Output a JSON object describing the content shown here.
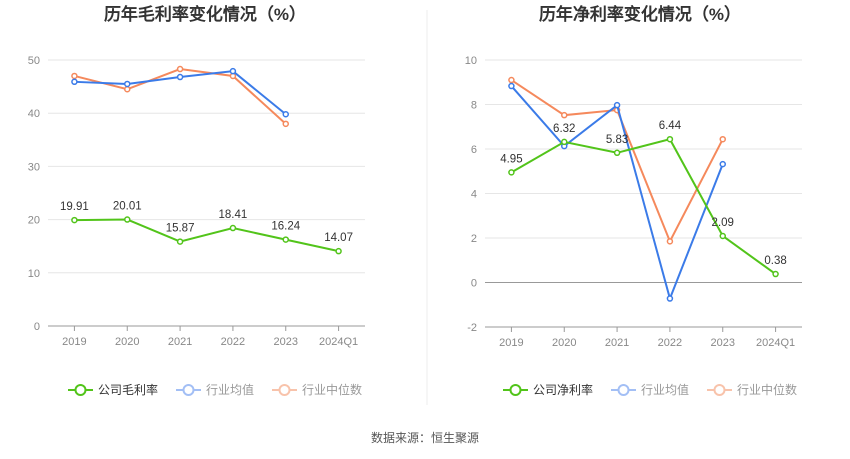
{
  "chart_data": [
    {
      "type": "line",
      "title": "历年毛利率变化情况（%）",
      "categories": [
        "2019",
        "2020",
        "2021",
        "2022",
        "2023",
        "2024Q1"
      ],
      "ylim": [
        0,
        50
      ],
      "yticks": [
        0,
        10,
        20,
        30,
        40,
        50
      ],
      "grid": true,
      "legend_position": "bottom",
      "series": [
        {
          "name": "公司毛利率",
          "color": "#52c41a",
          "values": [
            19.91,
            20.01,
            15.87,
            18.41,
            16.24,
            14.07
          ],
          "labels": [
            "19.91",
            "20.01",
            "15.87",
            "18.41",
            "16.24",
            "14.07"
          ]
        },
        {
          "name": "行业均值",
          "color": "#3b7be8",
          "legend_color": "#a3bff5",
          "values": [
            45.9,
            45.5,
            46.8,
            47.9,
            39.8,
            null
          ]
        },
        {
          "name": "行业中位数",
          "color": "#f5895c",
          "legend_color": "#f8c3ab",
          "values": [
            47.0,
            44.5,
            48.3,
            47.0,
            38.0,
            null
          ]
        }
      ]
    },
    {
      "type": "line",
      "title": "历年净利率变化情况（%）",
      "categories": [
        "2019",
        "2020",
        "2021",
        "2022",
        "2023",
        "2024Q1"
      ],
      "ylim": [
        -2,
        10
      ],
      "yticks": [
        -2,
        0,
        2,
        4,
        6,
        8,
        10
      ],
      "grid": true,
      "legend_position": "bottom",
      "series": [
        {
          "name": "公司净利率",
          "color": "#52c41a",
          "values": [
            4.95,
            6.32,
            5.83,
            6.44,
            2.09,
            0.38
          ],
          "labels": [
            "4.95",
            "6.32",
            "5.83",
            "6.44",
            "2.09",
            "0.38"
          ]
        },
        {
          "name": "行业均值",
          "color": "#3b7be8",
          "legend_color": "#a3bff5",
          "values": [
            8.83,
            6.13,
            7.97,
            -0.72,
            5.32,
            null
          ]
        },
        {
          "name": "行业中位数",
          "color": "#f5895c",
          "legend_color": "#f8c3ab",
          "values": [
            9.1,
            7.52,
            7.75,
            1.85,
            6.44,
            null
          ]
        }
      ]
    }
  ],
  "source": "数据来源：恒生聚源"
}
